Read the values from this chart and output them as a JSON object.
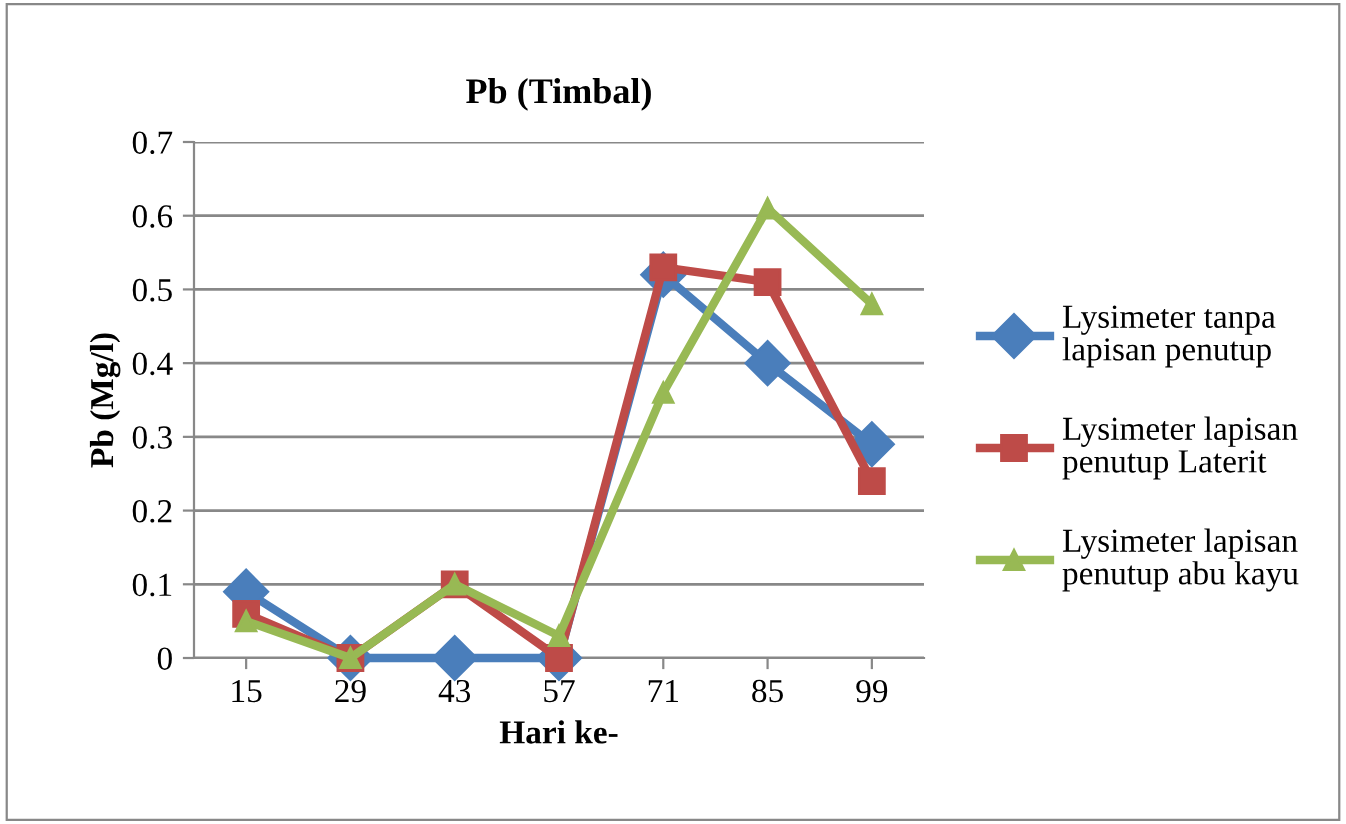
{
  "chart_data": {
    "type": "line",
    "title": "Pb (Timbal)",
    "xlabel": "Hari ke-",
    "ylabel": "Pb (Mg/l)",
    "categories": [
      "15",
      "29",
      "43",
      "57",
      "71",
      "85",
      "99"
    ],
    "series": [
      {
        "name": "Lysimeter tanpa lapisan penutup",
        "color": "#4a7ebb",
        "marker": "diamond",
        "values": [
          0.09,
          0,
          0,
          0,
          0.52,
          0.4,
          0.29
        ]
      },
      {
        "name": "Lysimeter lapisan penutup Laterit",
        "color": "#be4b48",
        "marker": "square",
        "values": [
          0.06,
          0,
          0.1,
          0,
          0.53,
          0.51,
          0.24
        ]
      },
      {
        "name": "Lysimeter lapisan penutup abu kayu",
        "color": "#98b954",
        "marker": "triangle",
        "values": [
          0.05,
          0,
          0.1,
          0.03,
          0.36,
          0.61,
          0.48
        ]
      }
    ],
    "ylim": [
      0,
      0.7
    ],
    "yticks": [
      {
        "value": 0,
        "label": "0"
      },
      0.1,
      0.2,
      0.3,
      0.4,
      0.5,
      0.6,
      0.7
    ],
    "grid": "y",
    "legend": "right",
    "line_style": "solid"
  }
}
